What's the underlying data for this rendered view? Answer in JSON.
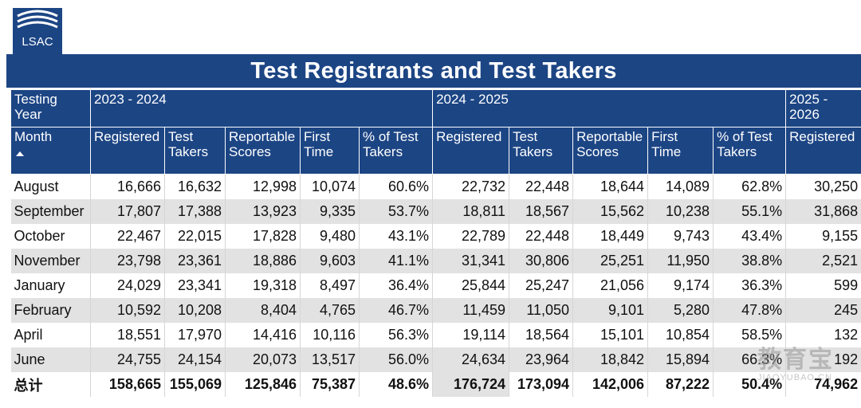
{
  "brand": {
    "logo_text": "LSAC",
    "color": "#1c4584"
  },
  "title": "Test Registrants and Test Takers",
  "header": {
    "testing_year": "Testing Year",
    "years": [
      "2023 - 2024",
      "2024 - 2025",
      "2025 - 2026"
    ],
    "month": "Month",
    "columns": [
      "Registered",
      "Test Takers",
      "Reportable Scores",
      "First Time",
      "% of Test Takers",
      "Registered",
      "Test Takers",
      "Reportable Scores",
      "First Time",
      "% of Test Takers",
      "Registered"
    ]
  },
  "rows": [
    {
      "month": "August",
      "values": [
        "16,666",
        "16,632",
        "12,998",
        "10,074",
        "60.6%",
        "22,732",
        "22,448",
        "18,644",
        "14,089",
        "62.8%",
        "30,250"
      ]
    },
    {
      "month": "September",
      "values": [
        "17,807",
        "17,388",
        "13,923",
        "9,335",
        "53.7%",
        "18,811",
        "18,567",
        "15,562",
        "10,238",
        "55.1%",
        "31,868"
      ]
    },
    {
      "month": "October",
      "values": [
        "22,467",
        "22,015",
        "17,828",
        "9,480",
        "43.1%",
        "22,789",
        "22,448",
        "18,449",
        "9,743",
        "43.4%",
        "9,155"
      ]
    },
    {
      "month": "November",
      "values": [
        "23,798",
        "23,361",
        "18,886",
        "9,603",
        "41.1%",
        "31,341",
        "30,806",
        "25,251",
        "11,950",
        "38.8%",
        "2,521"
      ]
    },
    {
      "month": "January",
      "values": [
        "24,029",
        "23,341",
        "19,318",
        "8,497",
        "36.4%",
        "25,844",
        "25,247",
        "21,056",
        "9,174",
        "36.3%",
        "599"
      ]
    },
    {
      "month": "February",
      "values": [
        "10,592",
        "10,208",
        "8,404",
        "4,765",
        "46.7%",
        "11,459",
        "11,050",
        "9,101",
        "5,280",
        "47.8%",
        "245"
      ]
    },
    {
      "month": "April",
      "values": [
        "18,551",
        "17,970",
        "14,416",
        "10,116",
        "56.3%",
        "19,114",
        "18,564",
        "15,101",
        "10,854",
        "58.5%",
        "132"
      ]
    },
    {
      "month": "June",
      "values": [
        "24,755",
        "24,154",
        "20,073",
        "13,517",
        "56.0%",
        "24,634",
        "23,964",
        "18,842",
        "15,894",
        "66.3%",
        "192"
      ]
    }
  ],
  "total": {
    "label": "总计",
    "values": [
      "158,665",
      "155,069",
      "125,846",
      "75,387",
      "48.6%",
      "176,724",
      "173,094",
      "142,006",
      "87,222",
      "50.4%",
      "74,962"
    ]
  },
  "watermark": {
    "text": "教育宝",
    "sub": "JIAOYUBAO.CN"
  }
}
